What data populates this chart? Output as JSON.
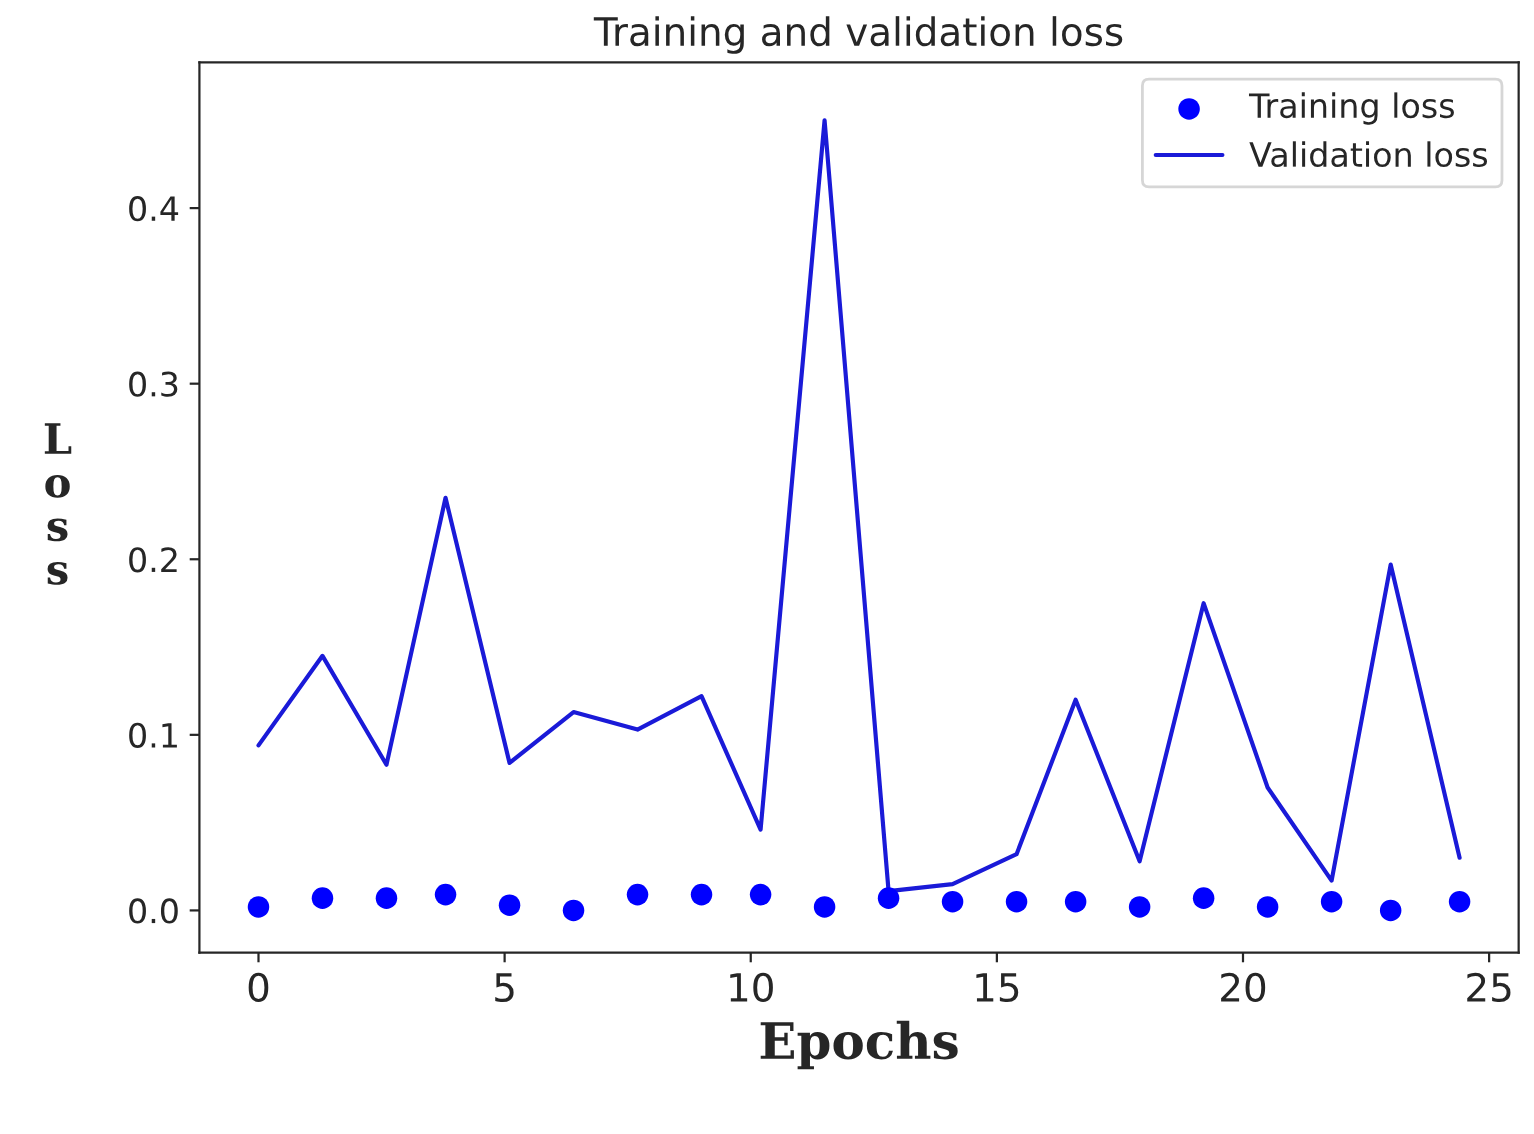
{
  "chart_data": {
    "type": "line",
    "title": "Training and validation loss",
    "xlabel": "Epochs",
    "ylabel": "L\no\ns\ns",
    "x": [
      0,
      1.3,
      2.6,
      3.8,
      5.1,
      6.4,
      7.7,
      9.0,
      10.2,
      11.5,
      12.8,
      14.1,
      15.4,
      16.6,
      17.9,
      19.2,
      20.5,
      21.8,
      23.0,
      24.4
    ],
    "series": [
      {
        "name": "Training loss",
        "type": "scatter",
        "color": "#0000ff",
        "marker": "circle",
        "values": [
          0.002,
          0.007,
          0.007,
          0.009,
          0.003,
          0.0,
          0.009,
          0.009,
          0.009,
          0.002,
          0.007,
          0.005,
          0.005,
          0.005,
          0.002,
          0.007,
          0.002,
          0.005,
          0.0,
          0.005
        ]
      },
      {
        "name": "Validation loss",
        "color": "#1a1ad8",
        "values": [
          0.094,
          0.145,
          0.083,
          0.235,
          0.084,
          0.113,
          0.103,
          0.122,
          0.046,
          0.45,
          0.011,
          0.015,
          0.032,
          0.12,
          0.028,
          0.175,
          0.07,
          0.017,
          0.197,
          0.03
        ]
      }
    ],
    "xlim": [
      -1.2,
      25.6
    ],
    "xticks": [
      0,
      5,
      10,
      15,
      20,
      25
    ],
    "ylim": [
      -0.024,
      0.483
    ],
    "yticks": [
      {
        "value": 0,
        "label": "0.0"
      },
      0.1,
      0.2,
      0.3,
      0.4
    ],
    "legend": "top right",
    "grid": false
  }
}
